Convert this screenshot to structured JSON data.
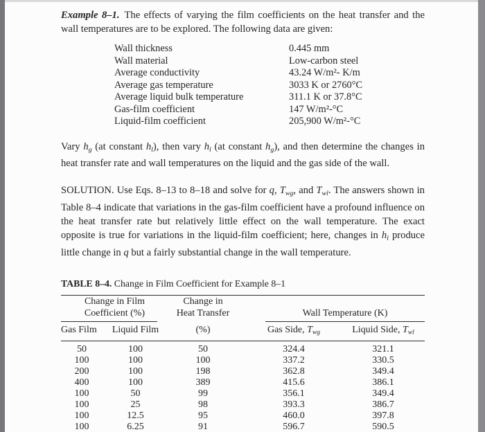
{
  "colors": {
    "paper": "#fcfcfc",
    "text": "#242424",
    "edge_left": "#76767c",
    "edge_right": "#8b8b8f",
    "rule": "#2b2b2b"
  },
  "example": {
    "label": "Example 8–1.",
    "text": "The effects of varying the film coefficients on the heat transfer and the wall temperatures are to be explored. The following data are given:"
  },
  "data_list": {
    "items": [
      {
        "label": "Wall thickness",
        "value": "0.445 mm"
      },
      {
        "label": "Wall material",
        "value": "Low-carbon steel"
      },
      {
        "label": "Average conductivity",
        "value": "43.24 W/m²- K/m"
      },
      {
        "label": "Average gas temperature",
        "value": "3033 K or 2760°C"
      },
      {
        "label": "Average liquid bulk temperature",
        "value": "311.1 K or 37.8°C"
      },
      {
        "label": "Gas-film coefficient",
        "value": "147 W/m²-°C"
      },
      {
        "label": "Liquid-film coefficient",
        "value": "205,900 W/m²-°C"
      }
    ]
  },
  "vary": {
    "tokens": [
      "Vary ",
      "h",
      "g",
      " (at constant ",
      "h",
      "l",
      "), then vary ",
      "h",
      "l",
      " (at constant ",
      "h",
      "g",
      "), and then determine the changes in heat transfer rate and wall temperatures on the liquid and the gas side of the wall."
    ]
  },
  "solution": {
    "tokens": [
      "SOLUTION.  Use Eqs. 8–13 to 8–18 and solve for ",
      "q",
      ", ",
      "T",
      "wg",
      ", and ",
      "T",
      "wl",
      ". The answers shown in Table 8–4 indicate that variations in the gas-film coefficient have a profound influence on the heat transfer rate but relatively little effect on the wall temperature. The exact opposite is true for variations in the liquid-film coefficient; here, changes in ",
      "h",
      "l",
      " produce little change in ",
      "q",
      " but a fairly substantial change in the wall temperature."
    ]
  },
  "table": {
    "title_label": "TABLE 8–4.",
    "title_text": "Change in Film Coefficient for Example 8–1",
    "group_headers": {
      "film_line1": "Change in Film",
      "film_line2": "Coefficient (%)",
      "heat_line1": "Change in",
      "heat_line2": "Heat Transfer",
      "wall": "Wall Temperature (K)"
    },
    "col_headers": {
      "gas_film": "Gas Film",
      "liquid_film": "Liquid Film",
      "heat_pct": "(%)",
      "gas_side_prefix": "Gas Side, ",
      "gas_side_var": "T",
      "gas_side_sub": "wg",
      "liquid_side_prefix": "Liquid Side, ",
      "liquid_side_var": "T",
      "liquid_side_sub": "wl"
    },
    "rows": [
      [
        "50",
        "100",
        "50",
        "324.4",
        "321.1"
      ],
      [
        "100",
        "100",
        "100",
        "337.2",
        "330.5"
      ],
      [
        "200",
        "100",
        "198",
        "362.8",
        "349.4"
      ],
      [
        "400",
        "100",
        "389",
        "415.6",
        "386.1"
      ],
      [
        "100",
        "50",
        "99",
        "356.1",
        "349.4"
      ],
      [
        "100",
        "25",
        "98",
        "393.3",
        "386.7"
      ],
      [
        "100",
        "12.5",
        "95",
        "460.0",
        "397.8"
      ],
      [
        "100",
        "6.25",
        "91",
        "596.7",
        "590.5"
      ]
    ]
  }
}
